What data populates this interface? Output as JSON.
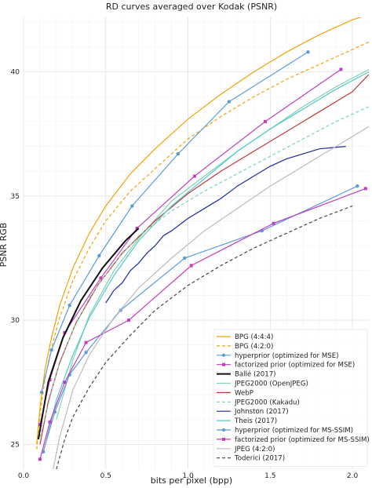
{
  "chart_data": {
    "type": "line",
    "title": "RD curves averaged over Kodak (PSNR)",
    "xlabel": "bits per pixel (bpp)",
    "ylabel": "PSNR RGB",
    "xlim": [
      0.0,
      2.1
    ],
    "ylim": [
      24.0,
      42.2
    ],
    "xticks": [
      0.0,
      0.5,
      1.0,
      1.5,
      2.0
    ],
    "xtick_labels": [
      "0.0",
      "0.5",
      "1.0",
      "1.5",
      "2.0"
    ],
    "yticks": [
      25,
      30,
      35,
      40
    ],
    "ytick_labels": [
      "25",
      "30",
      "35",
      "40"
    ],
    "grid": true,
    "legend_position": "bottom-right",
    "series": [
      {
        "name": "BPG (4:4:4)",
        "color": "#f0a30a",
        "dash": "solid",
        "marker": "none",
        "x": [
          0.08,
          0.1,
          0.13,
          0.17,
          0.22,
          0.3,
          0.4,
          0.5,
          0.65,
          0.8,
          1.0,
          1.2,
          1.4,
          1.6,
          1.8,
          2.0,
          2.1
        ],
        "y": [
          25.0,
          26.5,
          28.0,
          29.3,
          30.6,
          32.1,
          33.5,
          34.6,
          35.9,
          36.9,
          38.1,
          39.1,
          40.0,
          40.8,
          41.5,
          42.1,
          42.3
        ]
      },
      {
        "name": "BPG (4:2:0)",
        "color": "#f0a30a",
        "dash": "dashed",
        "marker": "none",
        "x": [
          0.08,
          0.1,
          0.13,
          0.17,
          0.22,
          0.3,
          0.4,
          0.5,
          0.65,
          0.8,
          1.0,
          1.2,
          1.4,
          1.6,
          1.8,
          2.0,
          2.1
        ],
        "y": [
          24.8,
          26.2,
          27.6,
          28.9,
          30.1,
          31.6,
          32.9,
          34.0,
          35.2,
          36.1,
          37.3,
          38.2,
          39.0,
          39.7,
          40.3,
          40.9,
          41.2
        ]
      },
      {
        "name": "hyperprior (optimized for MSE)",
        "color": "#5b9bd5",
        "dash": "solid",
        "marker": "circle",
        "x": [
          0.11,
          0.17,
          0.28,
          0.46,
          0.66,
          0.94,
          1.25,
          1.73
        ],
        "y": [
          27.1,
          28.8,
          30.6,
          32.6,
          34.6,
          36.7,
          38.8,
          40.8
        ]
      },
      {
        "name": "factorized prior (optimized for MSE)",
        "color": "#c03fbf",
        "dash": "solid",
        "marker": "square",
        "x": [
          0.1,
          0.16,
          0.25,
          0.47,
          0.69,
          1.04,
          1.47,
          1.93
        ],
        "y": [
          25.8,
          27.6,
          29.5,
          31.7,
          33.7,
          35.8,
          38.0,
          40.1
        ]
      },
      {
        "name": "Ballé (2017)",
        "color": "#111111",
        "dash": "solid",
        "marker": "none",
        "width": 2,
        "x": [
          0.09,
          0.15,
          0.24,
          0.35,
          0.48,
          0.62,
          0.7
        ],
        "y": [
          25.2,
          27.5,
          29.3,
          30.8,
          32.1,
          33.2,
          33.7
        ]
      },
      {
        "name": "JPEG2000 (OpenJPEG)",
        "color": "#7fd3b0",
        "dash": "solid",
        "marker": "none",
        "x": [
          0.2,
          0.3,
          0.4,
          0.55,
          0.7,
          0.9,
          1.1,
          1.3,
          1.5,
          1.7,
          1.9,
          2.1
        ],
        "y": [
          26.0,
          28.4,
          30.2,
          32.0,
          33.3,
          34.8,
          35.8,
          36.8,
          37.7,
          38.6,
          39.4,
          40.1
        ]
      },
      {
        "name": "WebP",
        "color": "#c0393b",
        "dash": "solid",
        "marker": "none",
        "x": [
          0.1,
          0.15,
          0.22,
          0.32,
          0.45,
          0.6,
          0.8,
          1.0,
          1.2,
          1.4,
          1.6,
          1.8,
          2.0,
          2.1
        ],
        "y": [
          25.0,
          26.7,
          28.3,
          29.9,
          31.4,
          32.7,
          34.0,
          35.1,
          36.0,
          36.8,
          37.6,
          38.4,
          39.2,
          39.9
        ]
      },
      {
        "name": "JPEG2000 (Kakadu)",
        "color": "#7fd3b0",
        "dash": "dashed",
        "marker": "none",
        "x": [
          0.1,
          0.2,
          0.3,
          0.4,
          0.55,
          0.7,
          0.9,
          1.1,
          1.3,
          1.5,
          1.7,
          1.9,
          2.1
        ],
        "y": [
          25.3,
          27.9,
          29.6,
          30.9,
          32.3,
          33.4,
          34.4,
          35.2,
          35.9,
          36.6,
          37.3,
          38.0,
          38.6
        ]
      },
      {
        "name": "Johnston (2017)",
        "color": "#1a2a9c",
        "dash": "solid",
        "marker": "none",
        "x": [
          0.5,
          0.55,
          0.6,
          0.65,
          0.7,
          0.75,
          0.8,
          0.85,
          0.9,
          1.0,
          1.1,
          1.2,
          1.3,
          1.4,
          1.5,
          1.6,
          1.7,
          1.8,
          1.96
        ],
        "y": [
          30.7,
          31.2,
          31.5,
          32.0,
          32.3,
          32.7,
          33.0,
          33.4,
          33.6,
          34.1,
          34.5,
          34.9,
          35.4,
          35.8,
          36.2,
          36.5,
          36.7,
          36.9,
          37.0
        ]
      },
      {
        "name": "Theis (2017)",
        "color": "#52c9c9",
        "dash": "solid",
        "marker": "none",
        "x": [
          0.14,
          0.2,
          0.3,
          0.4,
          0.55,
          0.7,
          0.9,
          1.1,
          1.3,
          1.5,
          1.7,
          1.9,
          2.1
        ],
        "y": [
          25.2,
          26.8,
          28.6,
          30.1,
          31.8,
          33.2,
          34.6,
          35.7,
          36.8,
          37.7,
          38.5,
          39.3,
          40.0
        ]
      },
      {
        "name": "hyperprior (optimized for MS-SSIM)",
        "color": "#5b9bd5",
        "dash": "solid",
        "marker": "circle",
        "x": [
          0.12,
          0.19,
          0.28,
          0.38,
          0.59,
          0.98,
          1.45,
          2.03
        ],
        "y": [
          24.7,
          26.3,
          27.8,
          28.7,
          30.4,
          32.5,
          33.6,
          35.4
        ]
      },
      {
        "name": "factorized prior (optimized for MS-SSIM)",
        "color": "#c03fbf",
        "dash": "solid",
        "marker": "square",
        "x": [
          0.1,
          0.16,
          0.25,
          0.38,
          0.64,
          1.02,
          1.52,
          2.08
        ],
        "y": [
          24.4,
          25.9,
          27.5,
          29.1,
          30.0,
          32.2,
          33.9,
          35.3
        ]
      },
      {
        "name": "JPEG (4:2:0)",
        "color": "#bbbbbb",
        "dash": "solid",
        "marker": "none",
        "x": [
          0.18,
          0.22,
          0.3,
          0.4,
          0.55,
          0.7,
          0.9,
          1.1,
          1.3,
          1.5,
          1.7,
          1.9,
          2.1
        ],
        "y": [
          24.0,
          25.3,
          27.2,
          28.6,
          30.1,
          31.3,
          32.5,
          33.6,
          34.5,
          35.4,
          36.2,
          37.0,
          37.8
        ]
      },
      {
        "name": "Toderici (2017)",
        "color": "#444444",
        "dash": "dashed",
        "marker": "none",
        "x": [
          0.2,
          0.25,
          0.3,
          0.4,
          0.5,
          0.65,
          0.8,
          1.0,
          1.2,
          1.4,
          1.6,
          1.8,
          2.0
        ],
        "y": [
          24.0,
          25.2,
          26.1,
          27.3,
          28.3,
          29.4,
          30.4,
          31.4,
          32.2,
          32.9,
          33.5,
          34.1,
          34.6
        ]
      }
    ]
  }
}
